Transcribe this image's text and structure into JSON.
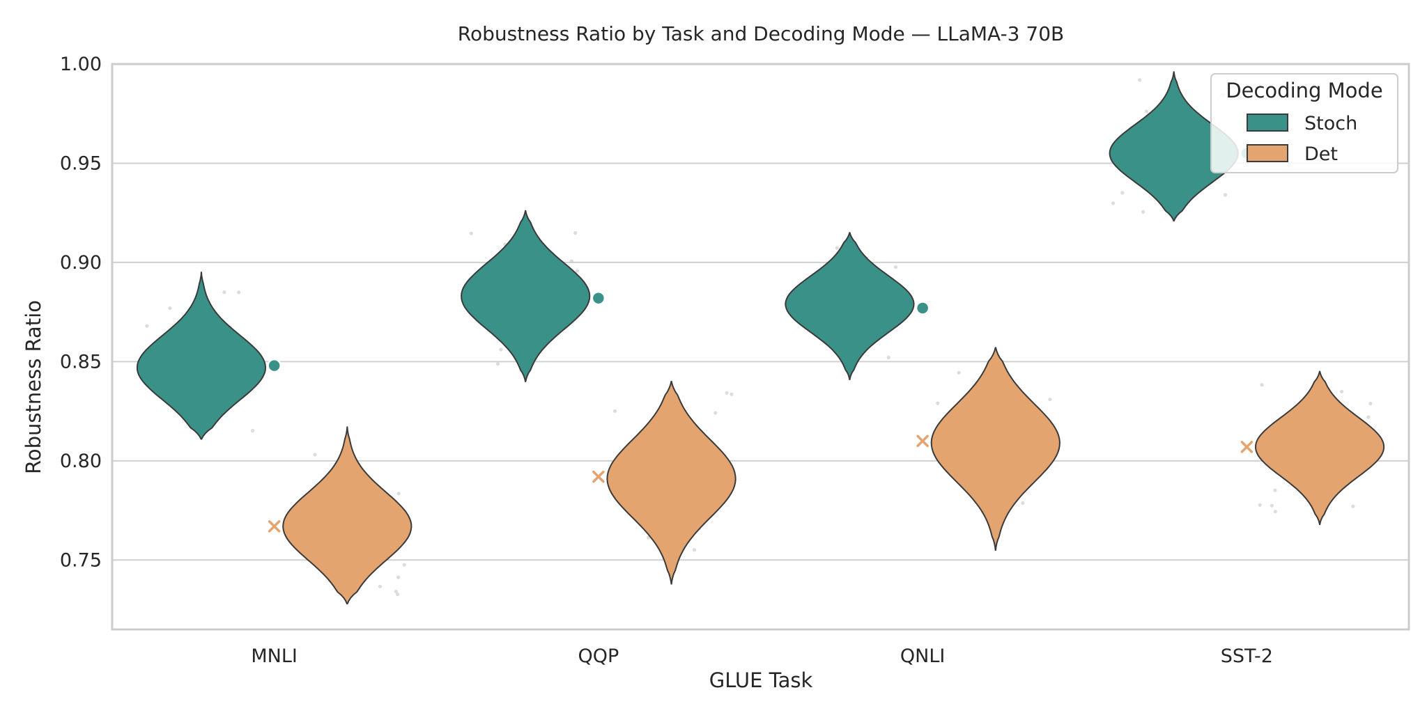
{
  "chart_data": {
    "type": "violin",
    "title": "Robustness Ratio by Task and Decoding Mode — LLaMA-3 70B",
    "xlabel": "GLUE Task",
    "ylabel": "Robustness Ratio",
    "ylim": [
      0.715,
      1.0
    ],
    "yticks": [
      "0.75",
      "0.80",
      "0.85",
      "0.90",
      "0.95",
      "1.00"
    ],
    "grid": "horizontal",
    "legend": {
      "title": "Decoding Mode",
      "placement": "top-right"
    },
    "categories": [
      "MNLI",
      "QQP",
      "QNLI",
      "SST-2"
    ],
    "series": [
      {
        "name": "Stoch",
        "color": "#3a9188",
        "mean_marker": "circle",
        "distributions": [
          {
            "min": 0.811,
            "max": 0.895,
            "mode": 0.847,
            "mean": 0.848
          },
          {
            "min": 0.84,
            "max": 0.926,
            "mode": 0.883,
            "mean": 0.882
          },
          {
            "min": 0.841,
            "max": 0.915,
            "mode": 0.879,
            "mean": 0.877
          },
          {
            "min": 0.921,
            "max": 0.996,
            "mode": 0.955,
            "mean": 0.955
          }
        ]
      },
      {
        "name": "Det",
        "color": "#e4a470",
        "mean_marker": "x",
        "distributions": [
          {
            "min": 0.728,
            "max": 0.817,
            "mode": 0.767,
            "mean": 0.767
          },
          {
            "min": 0.738,
            "max": 0.84,
            "mode": 0.791,
            "mean": 0.792
          },
          {
            "min": 0.755,
            "max": 0.857,
            "mode": 0.809,
            "mean": 0.81
          },
          {
            "min": 0.768,
            "max": 0.845,
            "mode": 0.807,
            "mean": 0.807
          }
        ]
      }
    ]
  }
}
